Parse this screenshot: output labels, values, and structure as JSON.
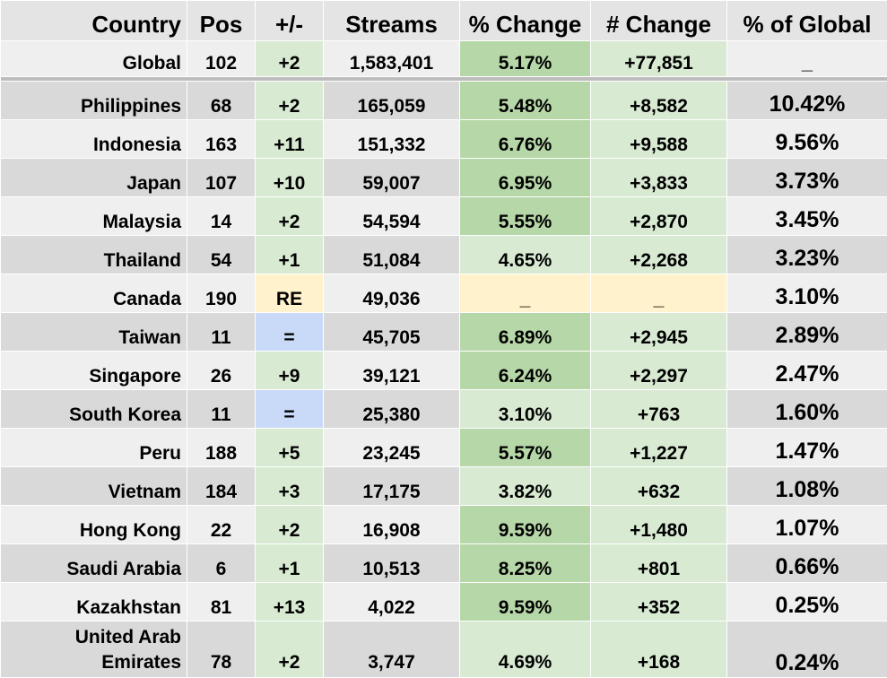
{
  "table": {
    "headers": [
      "Country",
      "Pos",
      "+/-",
      "Streams",
      "% Change",
      "# Change",
      "% of Global"
    ],
    "global": {
      "country": "Global",
      "pos": "102",
      "move": "+2",
      "streams": "1,583,401",
      "pct_change": "5.17%",
      "num_change": "+77,851",
      "share": "_"
    },
    "rows": [
      {
        "country": "Philippines",
        "pos": "68",
        "move": "+2",
        "streams": "165,059",
        "pct_change": "5.48%",
        "num_change": "+8,582",
        "share": "10.42%"
      },
      {
        "country": "Indonesia",
        "pos": "163",
        "move": "+11",
        "streams": "151,332",
        "pct_change": "6.76%",
        "num_change": "+9,588",
        "share": "9.56%"
      },
      {
        "country": "Japan",
        "pos": "107",
        "move": "+10",
        "streams": "59,007",
        "pct_change": "6.95%",
        "num_change": "+3,833",
        "share": "3.73%"
      },
      {
        "country": "Malaysia",
        "pos": "14",
        "move": "+2",
        "streams": "54,594",
        "pct_change": "5.55%",
        "num_change": "+2,870",
        "share": "3.45%"
      },
      {
        "country": "Thailand",
        "pos": "54",
        "move": "+1",
        "streams": "51,084",
        "pct_change": "4.65%",
        "num_change": "+2,268",
        "share": "3.23%"
      },
      {
        "country": "Canada",
        "pos": "190",
        "move": "RE",
        "streams": "49,036",
        "pct_change": "_",
        "num_change": "_",
        "share": "3.10%"
      },
      {
        "country": "Taiwan",
        "pos": "11",
        "move": "=",
        "streams": "45,705",
        "pct_change": "6.89%",
        "num_change": "+2,945",
        "share": "2.89%"
      },
      {
        "country": "Singapore",
        "pos": "26",
        "move": "+9",
        "streams": "39,121",
        "pct_change": "6.24%",
        "num_change": "+2,297",
        "share": "2.47%"
      },
      {
        "country": "South Korea",
        "pos": "11",
        "move": "=",
        "streams": "25,380",
        "pct_change": "3.10%",
        "num_change": "+763",
        "share": "1.60%"
      },
      {
        "country": "Peru",
        "pos": "188",
        "move": "+5",
        "streams": "23,245",
        "pct_change": "5.57%",
        "num_change": "+1,227",
        "share": "1.47%"
      },
      {
        "country": "Vietnam",
        "pos": "184",
        "move": "+3",
        "streams": "17,175",
        "pct_change": "3.82%",
        "num_change": "+632",
        "share": "1.08%"
      },
      {
        "country": "Hong Kong",
        "pos": "22",
        "move": "+2",
        "streams": "16,908",
        "pct_change": "9.59%",
        "num_change": "+1,480",
        "share": "1.07%"
      },
      {
        "country": "Saudi Arabia",
        "pos": "6",
        "move": "+1",
        "streams": "10,513",
        "pct_change": "8.25%",
        "num_change": "+801",
        "share": "0.66%"
      },
      {
        "country": "Kazakhstan",
        "pos": "81",
        "move": "+13",
        "streams": "4,022",
        "pct_change": "9.59%",
        "num_change": "+352",
        "share": "0.25%"
      },
      {
        "country": "United Arab\nEmirates",
        "pos": "78",
        "move": "+2",
        "streams": "3,747",
        "pct_change": "4.69%",
        "num_change": "+168",
        "share": "0.24%"
      }
    ]
  },
  "colors": {
    "light_green": "#d9ead3",
    "dark_green": "#b6d7a8",
    "yellow": "#fff2cc",
    "blue": "#c9daf8",
    "row_dark": "#d9d9d9",
    "row_light": "#efefef"
  }
}
